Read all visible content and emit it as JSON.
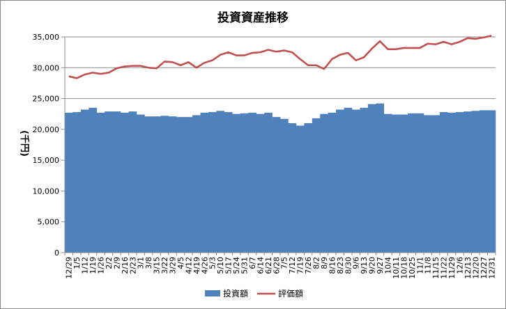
{
  "chart_data": {
    "type": "bar",
    "title": "投資資産推移",
    "xlabel": "",
    "ylabel": "(千円)",
    "ylim": [
      0,
      35000
    ],
    "yticks": [
      0,
      5000,
      10000,
      15000,
      20000,
      25000,
      30000,
      35000
    ],
    "ytick_labels": [
      "0",
      "5,000",
      "10,000",
      "15,000",
      "20,000",
      "25,000",
      "30,000",
      "35,000"
    ],
    "grid": true,
    "legend_position": "bottom",
    "categories": [
      "12/29",
      "1/5",
      "1/12",
      "1/19",
      "1/26",
      "2/2",
      "2/9",
      "2/16",
      "2/23",
      "3/1",
      "3/8",
      "3/15",
      "3/22",
      "3/29",
      "4/5",
      "4/12",
      "4/19",
      "4/26",
      "5/3",
      "5/10",
      "5/17",
      "5/24",
      "5/31",
      "6/7",
      "6/14",
      "6/21",
      "6/28",
      "7/5",
      "7/12",
      "7/19",
      "7/26",
      "8/2",
      "8/9",
      "8/16",
      "8/23",
      "8/30",
      "9/6",
      "9/13",
      "9/20",
      "9/27",
      "10/4",
      "10/11",
      "10/18",
      "10/25",
      "11/1",
      "11/8",
      "11/15",
      "11/22",
      "11/29",
      "12/6",
      "12/13",
      "12/20",
      "12/27",
      "12/31"
    ],
    "tick_labels": [
      "12/29",
      "1/5",
      "1/12",
      "1/19",
      "1/26",
      "2/2",
      "2/9",
      "2/16",
      "2/23",
      "3/1",
      "3/8",
      "3/15",
      "3/22",
      "3/29",
      "4/5",
      "4/12",
      "4/19",
      "4/26",
      "5/3",
      "5/10",
      "5/17",
      "5/24",
      "5/31",
      "6/7",
      "6/14",
      "6/21",
      "6/28",
      "7/5",
      "7/12",
      "7/19",
      "7/26",
      "8/2",
      "8/9",
      "8/16",
      "8/23",
      "8/30",
      "9/6",
      "9/13",
      "9/20",
      "9/27",
      "10/4",
      "10/11",
      "10/18",
      "10/25",
      "11/1",
      "11/8",
      "11/15",
      "11/22",
      "11/29",
      "12/6",
      "12/13",
      "12/20",
      "12/27",
      "12/31"
    ],
    "series": [
      {
        "name": "投資額",
        "type": "bar",
        "color": "#4f81bd",
        "values": [
          22700,
          22800,
          23200,
          23500,
          22700,
          22900,
          22900,
          22700,
          22900,
          22400,
          22100,
          22100,
          22200,
          22100,
          22000,
          22000,
          22300,
          22700,
          22800,
          23000,
          22800,
          22500,
          22600,
          22700,
          22500,
          22700,
          22000,
          21700,
          21000,
          20600,
          21000,
          21800,
          22500,
          22700,
          23200,
          23500,
          23200,
          23500,
          24100,
          24200,
          22500,
          22400,
          22400,
          22600,
          22600,
          22300,
          22300,
          22800,
          22700,
          22800,
          22900,
          23000,
          23100,
          23100
        ]
      },
      {
        "name": "評価額",
        "type": "line",
        "color": "#c0504d",
        "values": [
          28600,
          28300,
          28900,
          29200,
          29000,
          29200,
          29900,
          30200,
          30300,
          30300,
          30000,
          29900,
          31000,
          30900,
          30400,
          30900,
          30000,
          30800,
          31200,
          32100,
          32500,
          32000,
          32000,
          32400,
          32500,
          32900,
          32600,
          32800,
          32500,
          31400,
          30400,
          30400,
          29800,
          31400,
          32100,
          32400,
          31200,
          31700,
          33100,
          34300,
          33000,
          33000,
          33200,
          33200,
          33200,
          33900,
          33800,
          34200,
          33800,
          34200,
          34800,
          34700,
          34900,
          35200
        ]
      }
    ]
  }
}
